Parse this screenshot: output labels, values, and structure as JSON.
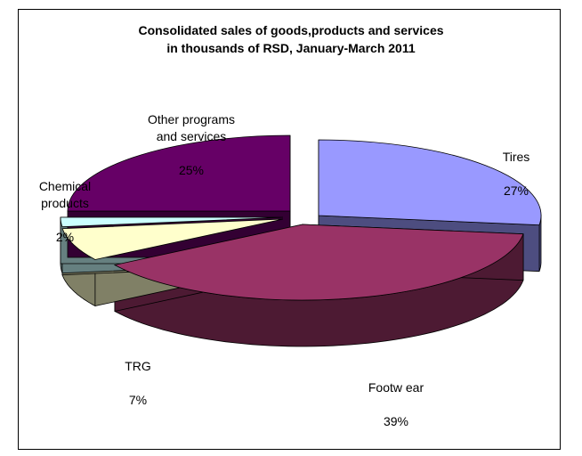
{
  "chart_data": {
    "type": "pie",
    "title_line1": "Consolidated sales of goods,products and services",
    "title_line2": "in thousands of RSD, January-March 2011",
    "slices": [
      {
        "label": "Tires",
        "percent_label": "27%",
        "value": 27,
        "color": "#9999ff",
        "side_color": "#4d4d80"
      },
      {
        "label": "Footw ear",
        "percent_label": "39%",
        "value": 39,
        "color": "#993366",
        "side_color": "#4d1a33"
      },
      {
        "label": "TRG",
        "percent_label": "7%",
        "value": 7,
        "color": "#ffffcc",
        "side_color": "#808066"
      },
      {
        "label": "Chemical\nproducts",
        "percent_label": "2%",
        "value": 2,
        "color": "#ccffff",
        "side_color": "#668080"
      },
      {
        "label": "Other programs\nand services",
        "percent_label": "25%",
        "value": 25,
        "color": "#660066",
        "side_color": "#330033"
      }
    ]
  }
}
